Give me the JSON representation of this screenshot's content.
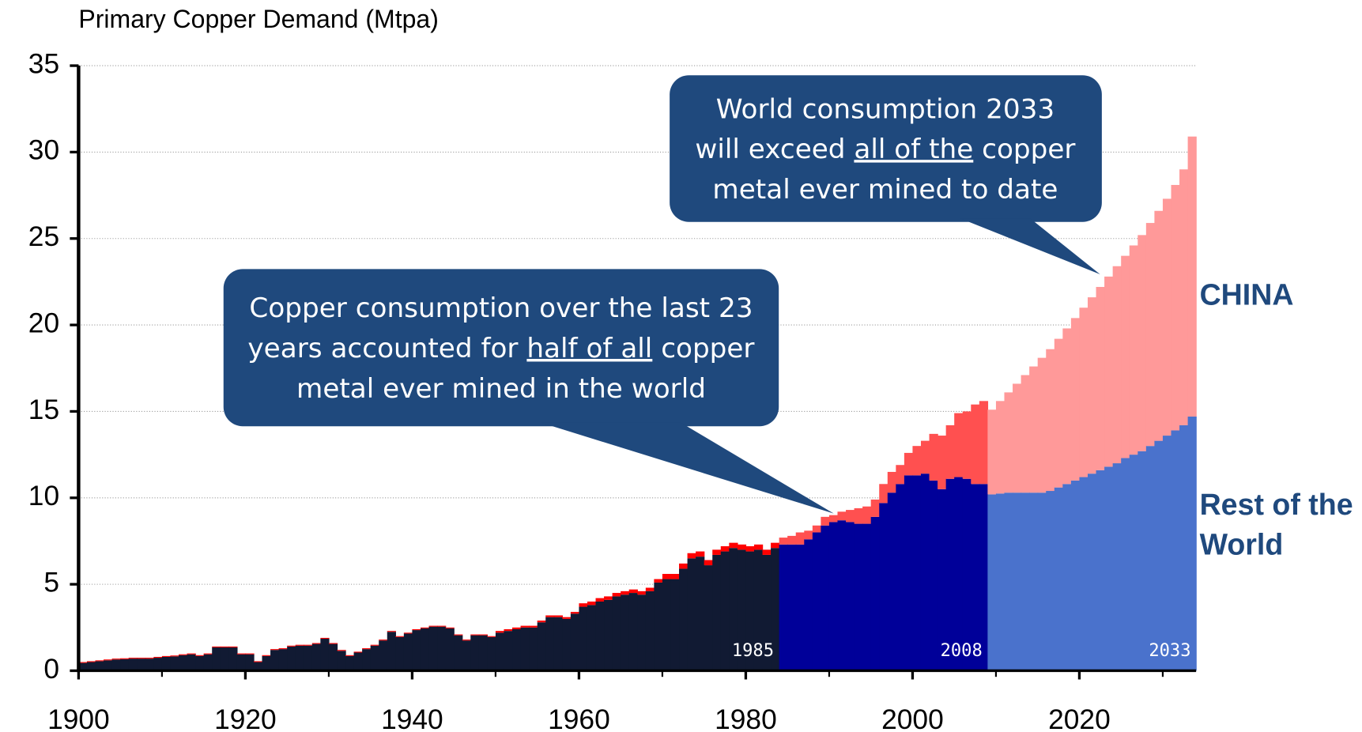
{
  "chart_data": {
    "type": "stacked-bar",
    "title": "Primary Copper Demand (Mtpa)",
    "x": [
      1900,
      1901,
      1902,
      1903,
      1904,
      1905,
      1906,
      1907,
      1908,
      1909,
      1910,
      1911,
      1912,
      1913,
      1914,
      1915,
      1916,
      1917,
      1918,
      1919,
      1920,
      1921,
      1922,
      1923,
      1924,
      1925,
      1926,
      1927,
      1928,
      1929,
      1930,
      1931,
      1932,
      1933,
      1934,
      1935,
      1936,
      1937,
      1938,
      1939,
      1940,
      1941,
      1942,
      1943,
      1944,
      1945,
      1946,
      1947,
      1948,
      1949,
      1950,
      1951,
      1952,
      1953,
      1954,
      1955,
      1956,
      1957,
      1958,
      1959,
      1960,
      1961,
      1962,
      1963,
      1964,
      1965,
      1966,
      1967,
      1968,
      1969,
      1970,
      1971,
      1972,
      1973,
      1974,
      1975,
      1976,
      1977,
      1978,
      1979,
      1980,
      1981,
      1982,
      1983,
      1984,
      1985,
      1986,
      1987,
      1988,
      1989,
      1990,
      1991,
      1992,
      1993,
      1994,
      1995,
      1996,
      1997,
      1998,
      1999,
      2000,
      2001,
      2002,
      2003,
      2004,
      2005,
      2006,
      2007,
      2008,
      2009,
      2010,
      2011,
      2012,
      2013,
      2014,
      2015,
      2016,
      2017,
      2018,
      2019,
      2020,
      2021,
      2022,
      2023,
      2024,
      2025,
      2026,
      2027,
      2028,
      2029,
      2030,
      2031,
      2032,
      2033
    ],
    "series": [
      {
        "name": "Rest of the World",
        "values": [
          0.45,
          0.5,
          0.55,
          0.6,
          0.65,
          0.67,
          0.7,
          0.7,
          0.7,
          0.75,
          0.8,
          0.83,
          0.9,
          0.95,
          0.85,
          0.95,
          1.35,
          1.35,
          1.35,
          0.95,
          0.95,
          0.5,
          0.85,
          1.2,
          1.25,
          1.4,
          1.45,
          1.45,
          1.55,
          1.85,
          1.55,
          1.15,
          0.85,
          1.05,
          1.25,
          1.45,
          1.75,
          2.25,
          1.95,
          2.15,
          2.35,
          2.45,
          2.55,
          2.55,
          2.45,
          2.05,
          1.75,
          2.05,
          2.05,
          1.95,
          2.2,
          2.3,
          2.4,
          2.5,
          2.5,
          2.8,
          3.1,
          3.1,
          3.0,
          3.3,
          3.7,
          3.8,
          4.0,
          4.1,
          4.3,
          4.4,
          4.5,
          4.4,
          4.6,
          5.1,
          5.3,
          5.3,
          5.9,
          6.5,
          6.6,
          6.1,
          6.7,
          6.9,
          7.1,
          7.0,
          6.9,
          7.0,
          6.7,
          7.1,
          7.3,
          7.3,
          7.3,
          7.6,
          8.0,
          8.4,
          8.6,
          8.7,
          8.6,
          8.5,
          8.5,
          8.9,
          9.7,
          10.3,
          10.8,
          11.3,
          11.3,
          11.4,
          11.0,
          10.5,
          11.1,
          11.2,
          11.1,
          10.8,
          10.8,
          10.2,
          10.25,
          10.3,
          10.3,
          10.3,
          10.3,
          10.3,
          10.4,
          10.6,
          10.8,
          11.0,
          11.2,
          11.4,
          11.6,
          11.8,
          12.0,
          12.3,
          12.5,
          12.7,
          13.0,
          13.3,
          13.6,
          13.9,
          14.2,
          14.7
        ]
      },
      {
        "name": "CHINA",
        "values": [
          0.05,
          0.05,
          0.05,
          0.05,
          0.05,
          0.05,
          0.05,
          0.05,
          0.05,
          0.05,
          0.05,
          0.05,
          0.05,
          0.05,
          0.05,
          0.05,
          0.05,
          0.05,
          0.05,
          0.05,
          0.05,
          0.05,
          0.05,
          0.05,
          0.05,
          0.05,
          0.05,
          0.05,
          0.05,
          0.05,
          0.05,
          0.05,
          0.05,
          0.05,
          0.05,
          0.05,
          0.05,
          0.05,
          0.05,
          0.05,
          0.05,
          0.05,
          0.05,
          0.05,
          0.05,
          0.05,
          0.05,
          0.05,
          0.05,
          0.05,
          0.1,
          0.1,
          0.1,
          0.1,
          0.1,
          0.1,
          0.1,
          0.1,
          0.1,
          0.1,
          0.2,
          0.2,
          0.2,
          0.2,
          0.2,
          0.2,
          0.2,
          0.2,
          0.2,
          0.2,
          0.3,
          0.3,
          0.3,
          0.3,
          0.3,
          0.3,
          0.3,
          0.3,
          0.3,
          0.3,
          0.3,
          0.3,
          0.3,
          0.3,
          0.4,
          0.5,
          0.7,
          0.5,
          0.4,
          0.5,
          0.4,
          0.5,
          0.7,
          0.9,
          1.0,
          1.0,
          1.1,
          1.2,
          1.1,
          1.3,
          1.7,
          1.9,
          2.7,
          3.1,
          3.1,
          3.7,
          3.9,
          4.6,
          4.8,
          4.9,
          5.35,
          5.8,
          6.3,
          6.8,
          7.3,
          7.8,
          8.2,
          8.6,
          9.0,
          9.4,
          9.8,
          10.2,
          10.6,
          11.0,
          11.4,
          11.7,
          12.1,
          12.5,
          12.9,
          13.3,
          13.7,
          14.2,
          14.8,
          16.2
        ]
      }
    ],
    "periods": [
      {
        "label": "1985",
        "end": 1983,
        "colors": [
          "#111a33",
          "#ff0000"
        ]
      },
      {
        "label": "2008",
        "end": 2008,
        "colors": [
          "#000099",
          "#ff5050"
        ]
      },
      {
        "label": "2033",
        "end": 2033,
        "colors": [
          "#4a72cc",
          "#ff9999"
        ]
      }
    ],
    "legend_color": "#1f497d",
    "xlim": [
      1900,
      2034
    ],
    "xticks": [
      1900,
      1920,
      1940,
      1960,
      1980,
      2000,
      2020
    ],
    "ylim": [
      0,
      35
    ],
    "yticks": [
      0,
      5,
      10,
      15,
      20,
      25,
      30,
      35
    ],
    "grid": true,
    "annotations": [
      {
        "lines": [
          [
            {
              "text": "World consumption 2033"
            }
          ],
          [
            {
              "text": "will exceed "
            },
            {
              "text": "all of the",
              "underline": true
            },
            {
              "text": " copper"
            }
          ],
          [
            {
              "text": "metal ever mined to date"
            }
          ]
        ]
      },
      {
        "lines": [
          [
            {
              "text": "Copper consumption over the last 23"
            }
          ],
          [
            {
              "text": "years accounted for "
            },
            {
              "text": "half of all",
              "underline": true
            },
            {
              "text": " copper"
            }
          ],
          [
            {
              "text": "metal ever mined in the world"
            }
          ]
        ]
      }
    ]
  }
}
